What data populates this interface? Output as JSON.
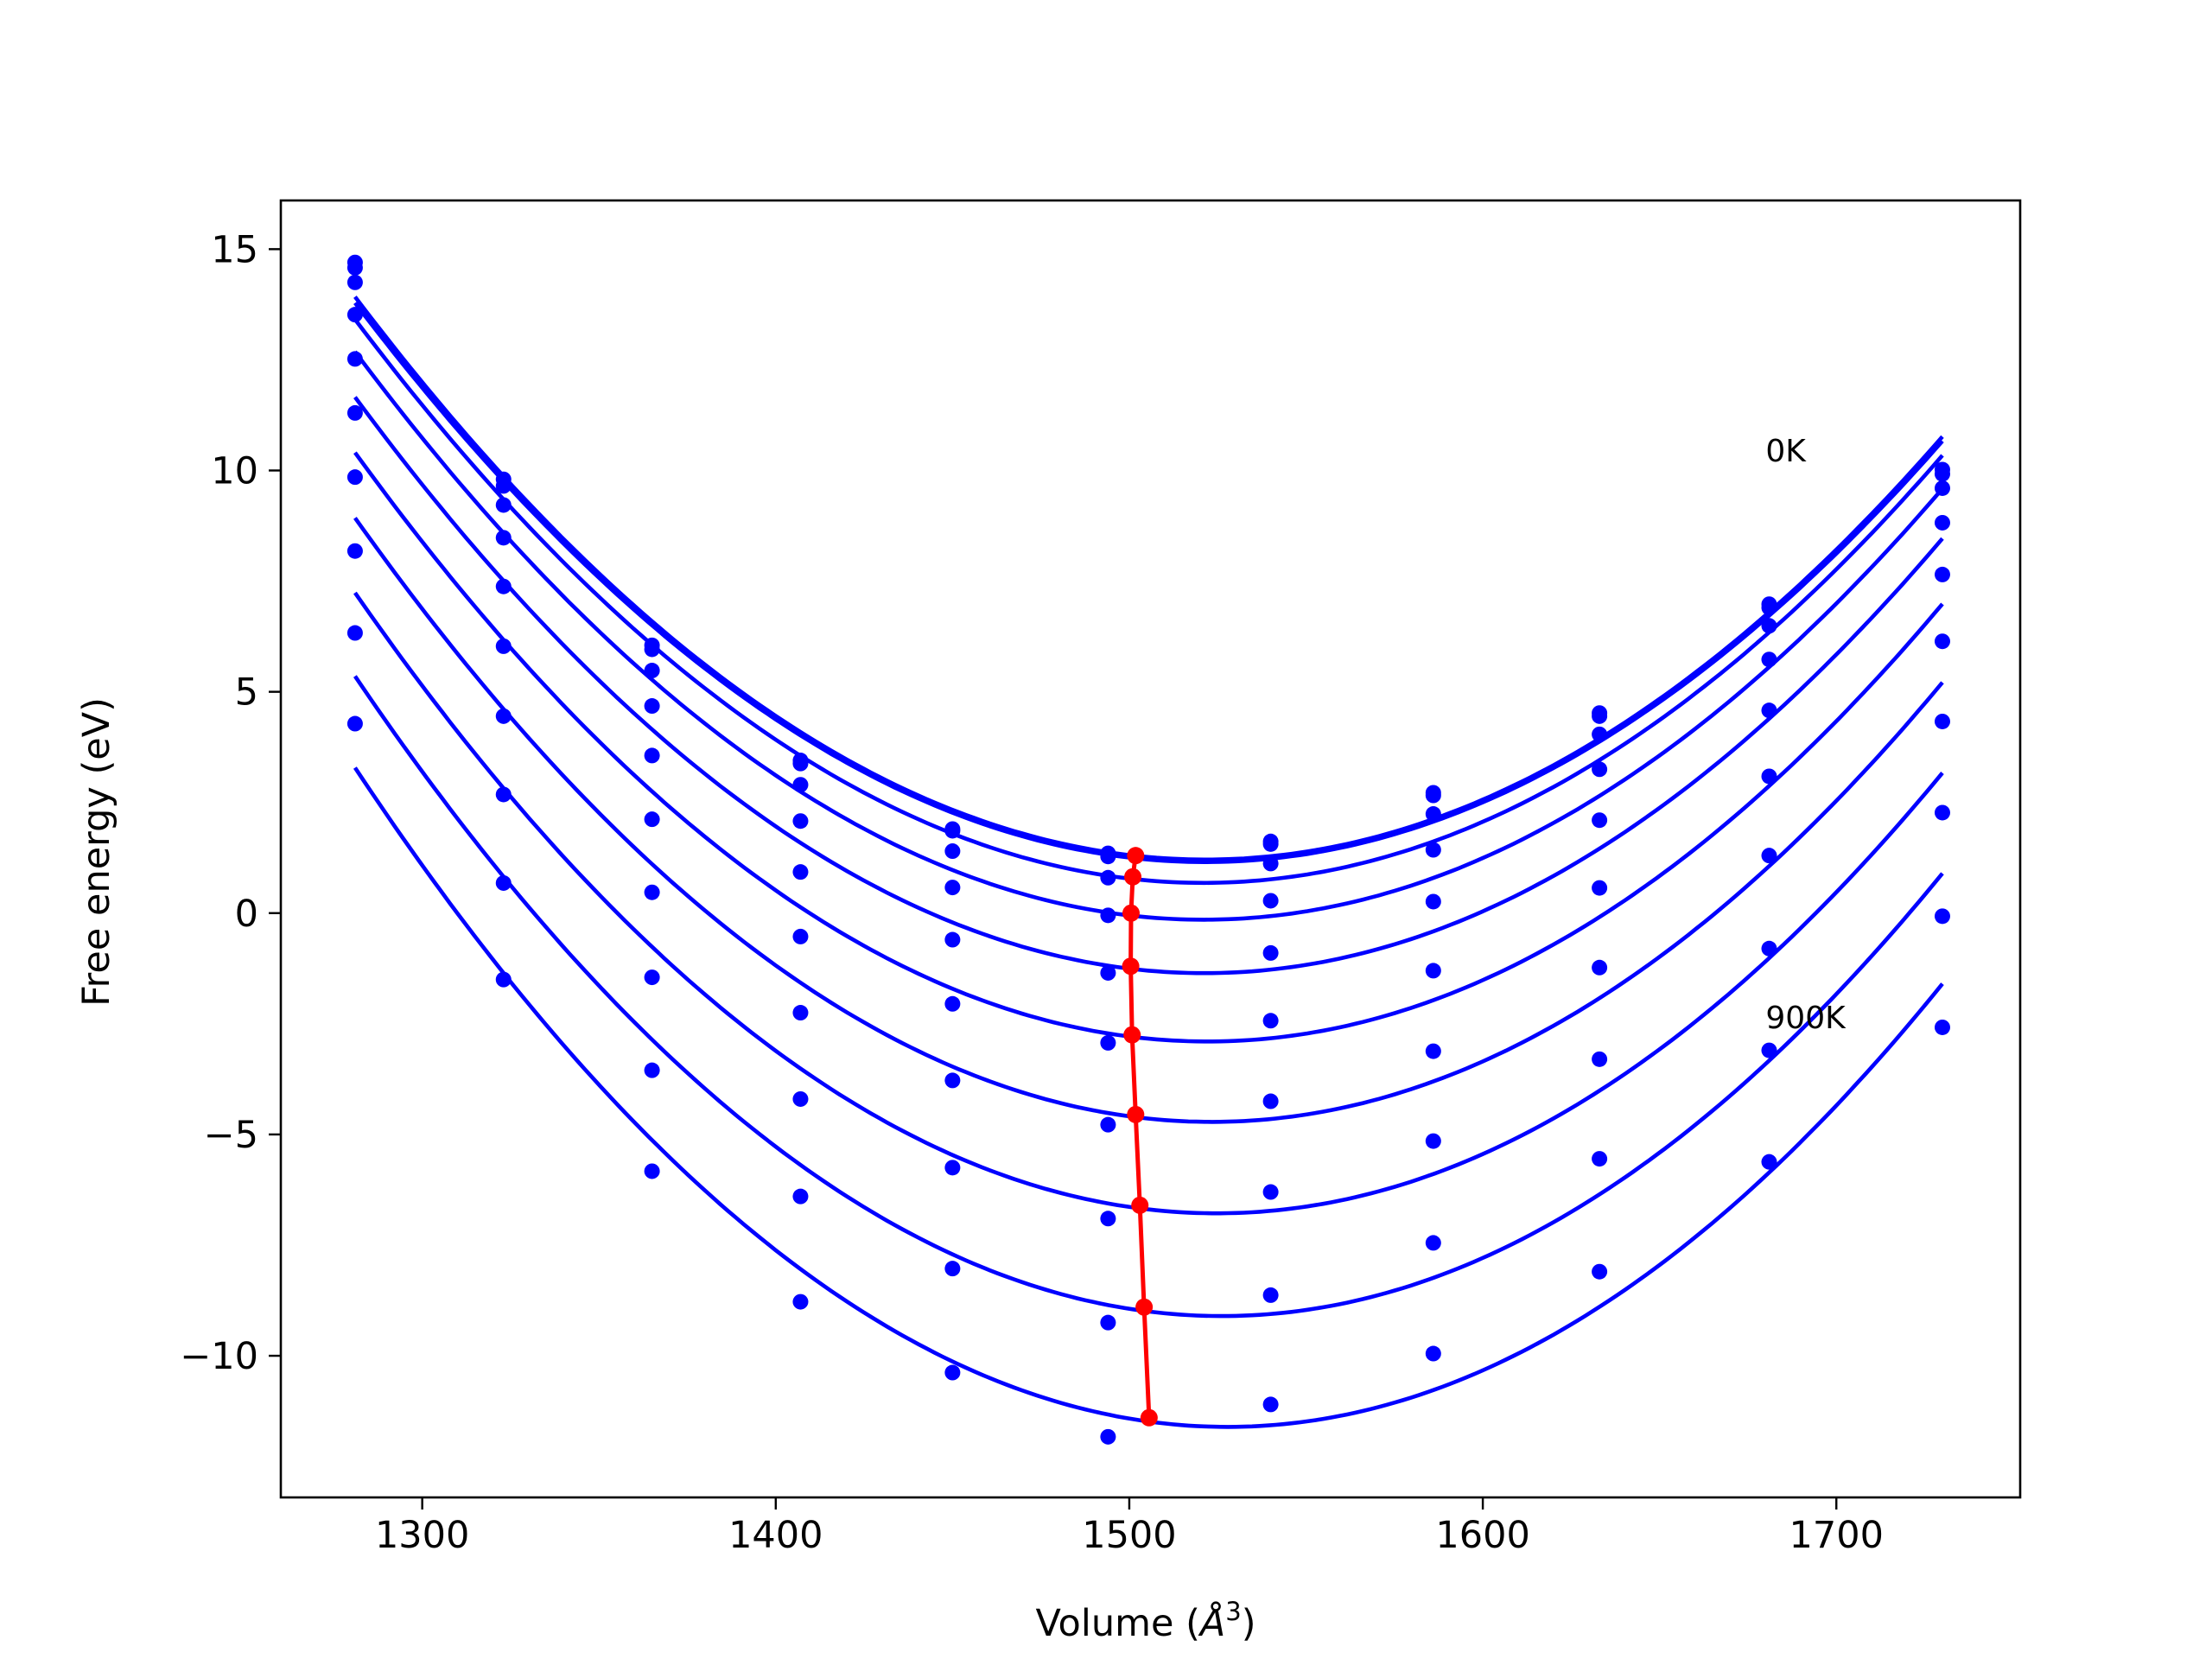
{
  "chart_data": {
    "type": "line",
    "xlabel": "Volume (Å³)",
    "xlabel_parts": {
      "prefix": "Volume (",
      "unit": "Å",
      "exponent": "3",
      "suffix": ")"
    },
    "ylabel": "Free energy (eV)",
    "xlim": [
      1260,
      1752
    ],
    "ylim": [
      -13.2,
      16.1
    ],
    "xticks": [
      1300,
      1400,
      1500,
      1600,
      1700
    ],
    "xtick_labels": [
      "1300",
      "1400",
      "1500",
      "1600",
      "1700"
    ],
    "yticks": [
      -10,
      -5,
      0,
      5,
      10,
      15
    ],
    "ytick_labels": [
      "−10",
      "−5",
      "0",
      "5",
      "10",
      "15"
    ],
    "grid": false,
    "annotations": [
      {
        "text": "0K",
        "x": 1680,
        "y": 10.2
      },
      {
        "text": "900K",
        "x": 1680,
        "y": -2.6
      }
    ],
    "colors": {
      "curves": "#0000ff",
      "equilibrium": "#ff0000"
    },
    "volumes": [
      1281,
      1323,
      1365,
      1407,
      1450,
      1494,
      1540,
      1586,
      1633,
      1681,
      1730
    ],
    "series": [
      {
        "points": [
          14.7,
          9.8,
          6.05,
          3.45,
          1.9,
          1.35,
          1.62,
          2.72,
          4.52,
          6.98,
          10.02
        ]
      },
      {
        "points": [
          14.58,
          9.65,
          5.96,
          3.38,
          1.86,
          1.28,
          1.56,
          2.66,
          4.45,
          6.9,
          9.92
        ]
      },
      {
        "points": [
          14.25,
          9.22,
          5.48,
          2.9,
          1.4,
          0.8,
          1.12,
          2.24,
          4.04,
          6.49,
          9.6
        ]
      },
      {
        "points": [
          13.52,
          8.48,
          4.68,
          2.08,
          0.58,
          -0.05,
          0.28,
          1.43,
          3.25,
          5.73,
          8.82
        ]
      },
      {
        "points": [
          12.52,
          7.38,
          3.56,
          0.93,
          -0.6,
          -1.35,
          -0.9,
          0.26,
          2.1,
          4.58,
          7.65
        ]
      },
      {
        "points": [
          11.3,
          6.03,
          2.12,
          -0.53,
          -2.05,
          -2.93,
          -2.43,
          -1.3,
          0.57,
          3.09,
          6.14
        ]
      },
      {
        "points": [
          9.85,
          4.45,
          0.47,
          -2.25,
          -3.78,
          -4.78,
          -4.25,
          -3.12,
          -1.23,
          1.3,
          4.33
        ]
      },
      {
        "points": [
          8.18,
          2.68,
          -1.45,
          -4.2,
          -5.75,
          -6.9,
          -6.3,
          -5.15,
          -3.3,
          -0.8,
          2.27
        ]
      },
      {
        "points": [
          6.33,
          0.68,
          -3.55,
          -6.4,
          -8.03,
          -9.25,
          -8.63,
          -7.45,
          -5.55,
          -3.1,
          -0.07
        ]
      },
      {
        "points": [
          4.28,
          -1.5,
          -5.83,
          -8.78,
          -10.38,
          -11.83,
          -11.1,
          -9.95,
          -8.1,
          -5.62,
          -2.58
        ]
      }
    ],
    "equilibrium": {
      "x": [
        1501.8,
        1501.0,
        1500.5,
        1500.4,
        1500.8,
        1501.8,
        1503.0,
        1504.2,
        1505.6
      ],
      "y": [
        1.3,
        0.82,
        0.0,
        -1.2,
        -2.75,
        -4.55,
        -6.6,
        -8.9,
        -11.4
      ]
    }
  }
}
